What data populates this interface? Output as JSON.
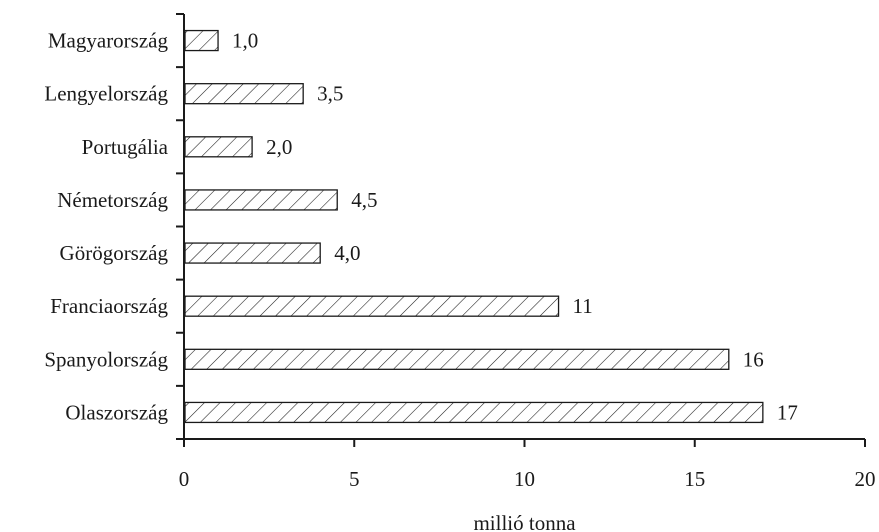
{
  "chart_data": {
    "type": "bar",
    "orientation": "horizontal",
    "title": "",
    "xlabel": "millió tonna",
    "ylabel": "",
    "xlim": [
      0,
      20
    ],
    "xticks": [
      0,
      5,
      10,
      15,
      20
    ],
    "xtick_labels": [
      "0",
      "5",
      "10",
      "15",
      "20"
    ],
    "grid": false,
    "fill_pattern": "diagonal-hatch",
    "bar_color": "#ffffff",
    "stroke_color": "#1a1a1a",
    "categories": [
      "Magyarország",
      "Lengyelország",
      "Portugália",
      "Németország",
      "Görögország",
      "Franciaország",
      "Spanyolország",
      "Olaszország"
    ],
    "values": [
      1.0,
      3.5,
      2.0,
      4.5,
      4.0,
      11,
      16,
      17
    ],
    "value_labels": [
      "1,0",
      "3,5",
      "2,0",
      "4,5",
      "4,0",
      "11",
      "16",
      "17"
    ]
  }
}
